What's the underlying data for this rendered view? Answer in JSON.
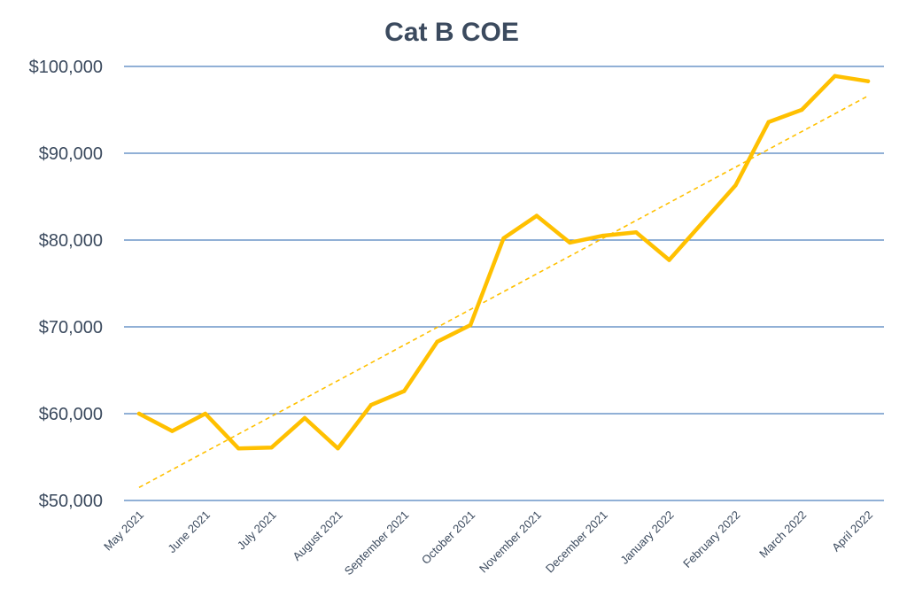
{
  "chart_data": {
    "type": "line",
    "title": "Cat B COE",
    "xlabel": "",
    "ylabel": "",
    "ylim": [
      50000,
      100000
    ],
    "yticks": [
      "$50,000",
      "$60,000",
      "$70,000",
      "$80,000",
      "$90,000",
      "$100,000"
    ],
    "ytick_values": [
      50000,
      60000,
      70000,
      80000,
      90000,
      100000
    ],
    "xticks": [
      "May 2021",
      "June 2021",
      "July 2021",
      "August 2021",
      "September 2021",
      "October 2021",
      "November 2021",
      "December 2021",
      "January 2022",
      "February 2022",
      "March 2022",
      "April 2022"
    ],
    "grid": true,
    "series": [
      {
        "values": [
          60000,
          58000,
          60000,
          56000,
          56100,
          59500,
          56000,
          61000,
          62600,
          68300,
          70200,
          80200,
          82800,
          79700,
          80500,
          80900,
          77700,
          82000,
          86300,
          93600,
          95000,
          98900,
          98300
        ]
      }
    ],
    "trendline": {
      "type": "linear",
      "start": 51500,
      "end": 96600,
      "style": "dashed"
    },
    "colors": {
      "line": "#FFC000",
      "trend": "#FFC000",
      "grid": "#4F81BD",
      "text": "#3B4A5E"
    }
  }
}
